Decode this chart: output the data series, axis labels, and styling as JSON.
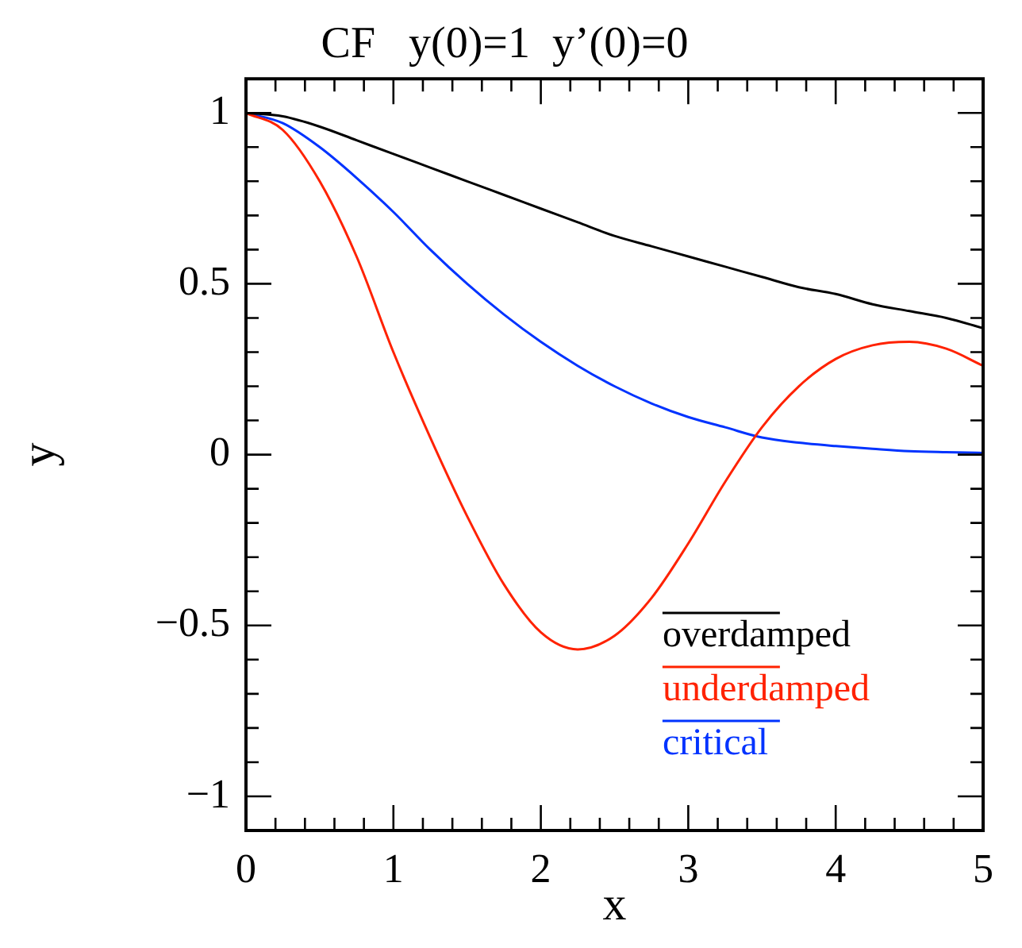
{
  "chart_data": {
    "type": "line",
    "title": "CF   y(0)=1  y’(0)=0",
    "xlabel": "x",
    "ylabel": "y",
    "xlim": [
      0,
      5
    ],
    "ylim": [
      -1.1,
      1.1
    ],
    "xticks": [
      0,
      {
        "value": 0.2,
        "label": null
      },
      {
        "value": 0.4,
        "label": null
      },
      {
        "value": 0.6,
        "label": null
      },
      {
        "value": 0.8,
        "label": null
      },
      1,
      {
        "value": 1.2,
        "label": null
      },
      {
        "value": 1.4,
        "label": null
      },
      {
        "value": 1.6,
        "label": null
      },
      {
        "value": 1.8,
        "label": null
      },
      2,
      {
        "value": 2.2,
        "label": null
      },
      {
        "value": 2.4,
        "label": null
      },
      {
        "value": 2.6,
        "label": null
      },
      {
        "value": 2.8,
        "label": null
      },
      3,
      {
        "value": 3.2,
        "label": null
      },
      {
        "value": 3.4,
        "label": null
      },
      {
        "value": 3.6,
        "label": null
      },
      {
        "value": 3.8,
        "label": null
      },
      4,
      {
        "value": 4.2,
        "label": null
      },
      {
        "value": 4.4,
        "label": null
      },
      {
        "value": 4.6,
        "label": null
      },
      {
        "value": 4.8,
        "label": null
      },
      5
    ],
    "yticks": [
      {
        "value": -1.1,
        "label": null
      },
      {
        "value": -1,
        "label": "−1"
      },
      {
        "value": -0.9,
        "label": null
      },
      {
        "value": -0.8,
        "label": null
      },
      {
        "value": -0.7,
        "label": null
      },
      {
        "value": -0.6,
        "label": null
      },
      {
        "value": -0.5,
        "label": "−0.5"
      },
      {
        "value": -0.4,
        "label": null
      },
      {
        "value": -0.3,
        "label": null
      },
      {
        "value": -0.2,
        "label": null
      },
      {
        "value": -0.1,
        "label": null
      },
      0,
      {
        "value": 0.1,
        "label": null
      },
      {
        "value": 0.2,
        "label": null
      },
      {
        "value": 0.3,
        "label": null
      },
      {
        "value": 0.4,
        "label": null
      },
      0.5,
      {
        "value": 0.6,
        "label": null
      },
      {
        "value": 0.7,
        "label": null
      },
      {
        "value": 0.8,
        "label": null
      },
      {
        "value": 0.9,
        "label": null
      },
      1,
      {
        "value": 1.1,
        "label": null
      }
    ],
    "x": [
      0,
      0.25,
      0.5,
      0.75,
      1,
      1.25,
      1.5,
      1.75,
      2,
      2.25,
      2.5,
      2.75,
      3,
      3.25,
      3.5,
      3.75,
      4,
      4.25,
      4.5,
      4.75,
      5
    ],
    "series": [
      {
        "name": "overdamped",
        "color": "#000000",
        "values": [
          1,
          0.99,
          0.96,
          0.92,
          0.88,
          0.84,
          0.8,
          0.76,
          0.72,
          0.68,
          0.64,
          0.61,
          0.58,
          0.55,
          0.52,
          0.49,
          0.47,
          0.44,
          0.42,
          0.4,
          0.37
        ]
      },
      {
        "name": "underdamped",
        "color": "#ff2200",
        "values": [
          1,
          0.95,
          0.8,
          0.58,
          0.3,
          0.05,
          -0.18,
          -0.38,
          -0.52,
          -0.57,
          -0.53,
          -0.42,
          -0.26,
          -0.08,
          0.08,
          0.2,
          0.28,
          0.32,
          0.33,
          0.31,
          0.26
        ]
      },
      {
        "name": "critical",
        "color": "#0033ff",
        "values": [
          1,
          0.97,
          0.9,
          0.81,
          0.71,
          0.6,
          0.5,
          0.41,
          0.33,
          0.26,
          0.2,
          0.15,
          0.11,
          0.08,
          0.05,
          0.035,
          0.025,
          0.017,
          0.01,
          0.007,
          0.005
        ]
      }
    ],
    "legend": "bottom right",
    "grid": false,
    "marker": "none",
    "line_style": "solid"
  }
}
